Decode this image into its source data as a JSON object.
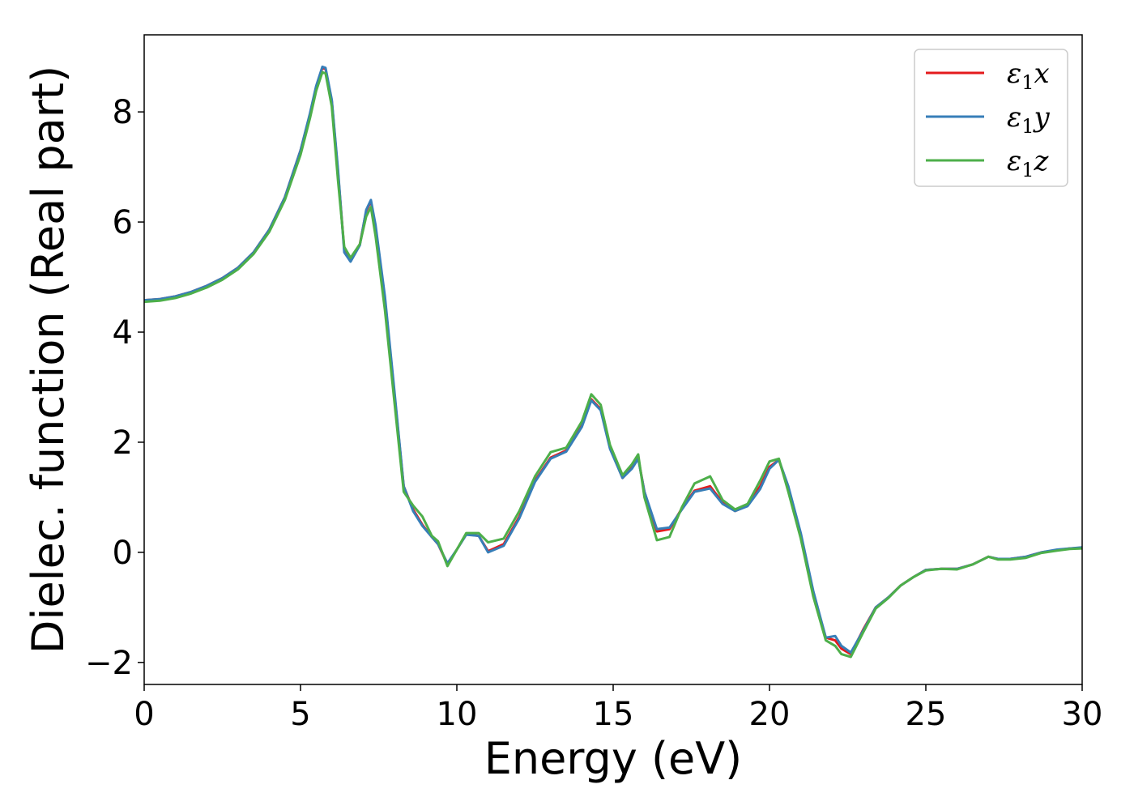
{
  "chart_data": {
    "type": "line",
    "xlabel": "Energy (eV)",
    "ylabel": "Dielec. function (Real part)",
    "xlim": [
      0,
      30
    ],
    "ylim": [
      -2.4,
      9.4
    ],
    "xticks": [
      0,
      5,
      10,
      15,
      20,
      25,
      30
    ],
    "xtick_labels": [
      "0",
      "5",
      "10",
      "15",
      "20",
      "25",
      "30"
    ],
    "yticks": [
      -2,
      0,
      2,
      4,
      6,
      8
    ],
    "ytick_labels": [
      "−2",
      "0",
      "2",
      "4",
      "6",
      "8"
    ],
    "grid": false,
    "legend_position": "top-right",
    "x": [
      0,
      0.5,
      1,
      1.5,
      2,
      2.5,
      3,
      3.5,
      4,
      4.5,
      5,
      5.3,
      5.5,
      5.7,
      5.8,
      6.0,
      6.2,
      6.4,
      6.6,
      6.9,
      7.1,
      7.25,
      7.4,
      7.7,
      8.0,
      8.3,
      8.6,
      8.9,
      9.2,
      9.4,
      9.7,
      10.0,
      10.3,
      10.7,
      11.0,
      11.5,
      12.0,
      12.5,
      13.0,
      13.5,
      14.0,
      14.3,
      14.6,
      14.9,
      15.3,
      15.6,
      15.8,
      16.0,
      16.4,
      16.8,
      17.2,
      17.6,
      18.1,
      18.5,
      18.9,
      19.3,
      19.7,
      20.0,
      20.3,
      20.6,
      21.0,
      21.4,
      21.8,
      22.1,
      22.3,
      22.6,
      23.0,
      23.4,
      23.8,
      24.2,
      24.6,
      25.0,
      25.5,
      26.0,
      26.5,
      27.0,
      27.3,
      27.7,
      28.2,
      28.7,
      29.2,
      29.6,
      30.0
    ],
    "series": [
      {
        "name": "ε₁x",
        "color": "#e41a1c",
        "values": [
          4.58,
          4.6,
          4.65,
          4.73,
          4.84,
          4.98,
          5.17,
          5.45,
          5.86,
          6.45,
          7.3,
          7.95,
          8.45,
          8.8,
          8.78,
          8.2,
          6.9,
          5.5,
          5.3,
          5.6,
          6.2,
          6.38,
          5.9,
          4.6,
          2.9,
          1.2,
          0.78,
          0.5,
          0.28,
          0.15,
          -0.22,
          0.05,
          0.33,
          0.3,
          0.02,
          0.15,
          0.65,
          1.3,
          1.72,
          1.85,
          2.3,
          2.78,
          2.6,
          1.9,
          1.35,
          1.55,
          1.72,
          1.1,
          0.38,
          0.42,
          0.8,
          1.12,
          1.2,
          0.9,
          0.75,
          0.85,
          1.2,
          1.55,
          1.68,
          1.15,
          0.3,
          -0.75,
          -1.55,
          -1.6,
          -1.75,
          -1.85,
          -1.4,
          -1.0,
          -0.82,
          -0.6,
          -0.45,
          -0.32,
          -0.3,
          -0.3,
          -0.22,
          -0.08,
          -0.12,
          -0.12,
          -0.08,
          0.0,
          0.04,
          0.07,
          0.08
        ]
      },
      {
        "name": "ε₁y",
        "color": "#377eb8",
        "values": [
          4.58,
          4.6,
          4.65,
          4.73,
          4.84,
          4.98,
          5.17,
          5.45,
          5.86,
          6.45,
          7.3,
          7.97,
          8.47,
          8.82,
          8.8,
          8.22,
          6.95,
          5.45,
          5.28,
          5.58,
          6.22,
          6.4,
          5.95,
          4.65,
          2.95,
          1.2,
          0.75,
          0.48,
          0.28,
          0.15,
          -0.2,
          0.05,
          0.32,
          0.3,
          0.0,
          0.12,
          0.62,
          1.28,
          1.7,
          1.83,
          2.28,
          2.76,
          2.58,
          1.88,
          1.35,
          1.52,
          1.7,
          1.1,
          0.42,
          0.45,
          0.78,
          1.1,
          1.16,
          0.88,
          0.75,
          0.84,
          1.15,
          1.52,
          1.68,
          1.2,
          0.35,
          -0.7,
          -1.55,
          -1.52,
          -1.7,
          -1.82,
          -1.42,
          -1.0,
          -0.82,
          -0.6,
          -0.45,
          -0.32,
          -0.3,
          -0.3,
          -0.22,
          -0.08,
          -0.12,
          -0.12,
          -0.08,
          0.0,
          0.05,
          0.07,
          0.09
        ]
      },
      {
        "name": "ε₁z",
        "color": "#4daf4a",
        "values": [
          4.55,
          4.57,
          4.62,
          4.7,
          4.81,
          4.95,
          5.14,
          5.42,
          5.82,
          6.4,
          7.22,
          7.88,
          8.38,
          8.72,
          8.7,
          8.1,
          6.75,
          5.55,
          5.35,
          5.6,
          6.1,
          6.27,
          5.75,
          4.4,
          2.75,
          1.1,
          0.85,
          0.65,
          0.3,
          0.2,
          -0.25,
          0.05,
          0.35,
          0.35,
          0.18,
          0.25,
          0.75,
          1.38,
          1.82,
          1.9,
          2.38,
          2.87,
          2.68,
          1.95,
          1.4,
          1.6,
          1.78,
          1.0,
          0.22,
          0.28,
          0.82,
          1.25,
          1.38,
          0.95,
          0.78,
          0.88,
          1.3,
          1.65,
          1.7,
          1.1,
          0.25,
          -0.8,
          -1.6,
          -1.7,
          -1.85,
          -1.9,
          -1.45,
          -1.02,
          -0.83,
          -0.6,
          -0.45,
          -0.33,
          -0.3,
          -0.31,
          -0.22,
          -0.08,
          -0.13,
          -0.13,
          -0.1,
          -0.01,
          0.03,
          0.06,
          0.07
        ]
      }
    ]
  }
}
